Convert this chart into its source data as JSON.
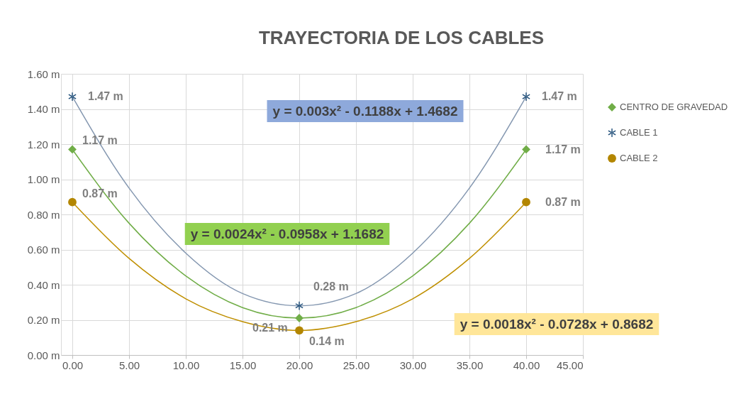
{
  "chart_data": {
    "type": "scatter",
    "title": "TRAYECTORIA DE LOS CABLES",
    "xlim": [
      -1,
      45
    ],
    "xticks": [
      {
        "value": 0,
        "label": "0.00"
      },
      {
        "value": 5,
        "label": "5.00"
      },
      {
        "value": 10,
        "label": "10.00"
      },
      {
        "value": 15,
        "label": "15.00"
      },
      {
        "value": 20,
        "label": "20.00"
      },
      {
        "value": 25,
        "label": "25.00"
      },
      {
        "value": 30,
        "label": "30.00"
      },
      {
        "value": 35,
        "label": "35.00"
      },
      {
        "value": 40,
        "label": "40.00"
      },
      {
        "value": 45,
        "label": "45.00"
      }
    ],
    "ylim": [
      0,
      1.6
    ],
    "yticks": [
      {
        "value": 0,
        "label": "0.00 m"
      },
      {
        "value": 0.2,
        "label": "0.20 m"
      },
      {
        "value": 0.4,
        "label": "0.40 m"
      },
      {
        "value": 0.6,
        "label": "0.60 m"
      },
      {
        "value": 0.8,
        "label": "0.80 m"
      },
      {
        "value": 1.0,
        "label": "1.00 m"
      },
      {
        "value": 1.2,
        "label": "1.20 m"
      },
      {
        "value": 1.4,
        "label": "1.40 m"
      },
      {
        "value": 1.6,
        "label": "1.60 m"
      }
    ],
    "grid": true,
    "legend": "right",
    "series": [
      {
        "name": "CENTRO DE GRAVEDAD",
        "marker": "diamond",
        "color": "#70ad47",
        "x": [
          0,
          20,
          40
        ],
        "values": [
          1.17,
          0.21,
          1.17
        ],
        "value_labels": [
          "1.17 m",
          "0.21 m",
          "1.17 m"
        ]
      },
      {
        "name": "CABLE 1",
        "marker": "cross",
        "color": "#1f4e79",
        "x": [
          0,
          20,
          40
        ],
        "values": [
          1.47,
          0.28,
          1.47
        ],
        "value_labels": [
          "1.47 m",
          "0.28 m",
          "1.47 m"
        ]
      },
      {
        "name": "CABLE 2",
        "marker": "circle",
        "color": "#b38600",
        "x": [
          0,
          20,
          40
        ],
        "values": [
          0.87,
          0.14,
          0.87
        ],
        "value_labels": [
          "0.87 m",
          "0.14 m",
          "0.87 m"
        ]
      },
      {
        "type": "line",
        "color": "#8497b0",
        "x": [
          0,
          5,
          10,
          15,
          20,
          25,
          30,
          35,
          40
        ],
        "values": [
          1.47,
          0.95,
          0.58,
          0.35,
          0.28,
          0.35,
          0.58,
          0.95,
          1.47
        ]
      },
      {
        "type": "line",
        "color": "#70ad47",
        "x": [
          0,
          5,
          10,
          15,
          20,
          25,
          30,
          35,
          40
        ],
        "values": [
          1.17,
          0.75,
          0.45,
          0.27,
          0.21,
          0.27,
          0.45,
          0.75,
          1.17
        ]
      },
      {
        "type": "line",
        "color": "#bf8f00",
        "x": [
          0,
          5,
          10,
          15,
          20,
          25,
          30,
          35,
          40
        ],
        "values": [
          0.87,
          0.55,
          0.32,
          0.19,
          0.14,
          0.19,
          0.32,
          0.55,
          0.87
        ]
      }
    ],
    "annotations": [
      "y = 0.003x² - 0.1188x + 1.4682",
      "y = 0.0024x² - 0.0958x + 1.1682",
      "y = 0.0018x² - 0.0728x + 0.8682"
    ]
  }
}
